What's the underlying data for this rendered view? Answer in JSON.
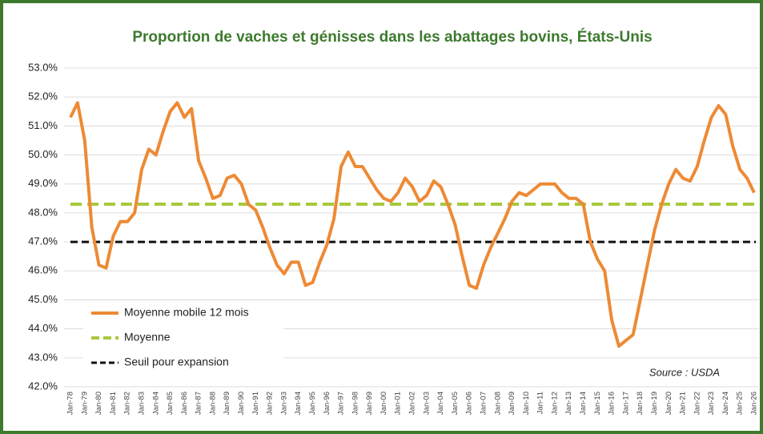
{
  "chart_data": {
    "type": "line",
    "title": "Proportion de vaches et génisses dans les abattages bovins, États-Unis",
    "source": "Source : USDA",
    "categories": [
      "Jan-78",
      null,
      "Jan-79",
      null,
      "Jan-80",
      null,
      "Jan-81",
      null,
      "Jan-82",
      null,
      "Jan-83",
      null,
      "Jan-84",
      null,
      "Jan-85",
      null,
      "Jan-86",
      null,
      "Jan-87",
      null,
      "Jan-88",
      null,
      "Jan-89",
      null,
      "Jan-90",
      null,
      "Jan-91",
      null,
      "Jan-92",
      null,
      "Jan-93",
      null,
      "Jan-94",
      null,
      "Jan-95",
      null,
      "Jan-96",
      null,
      "Jan-97",
      null,
      "Jan-98",
      null,
      "Jan-99",
      null,
      "Jan-00",
      null,
      "Jan-01",
      null,
      "Jan-02",
      null,
      "Jan-03",
      null,
      "Jan-04",
      null,
      "Jan-05",
      null,
      "Jan-06",
      null,
      "Jan-07",
      null,
      "Jan-08",
      null,
      "Jan-09",
      null,
      "Jan-10",
      null,
      "Jan-11",
      null,
      "Jan-12",
      null,
      "Jan-13",
      null,
      "Jan-14",
      null,
      "Jan-15",
      null,
      "Jan-16",
      null,
      "Jan-17",
      null,
      "Jan-18",
      null,
      "Jan-19",
      null,
      "Jan-20",
      null,
      "Jan-21",
      null,
      "Jan-22",
      null,
      "Jan-23",
      null,
      "Jan-24",
      null,
      "Jan-25",
      null,
      "Jan-26"
    ],
    "series": [
      {
        "name": "Moyenne mobile 12 mois",
        "color": "#ed8a35",
        "values": [
          51.3,
          51.8,
          50.5,
          47.5,
          46.2,
          46.1,
          47.2,
          47.7,
          47.7,
          48.0,
          49.5,
          50.2,
          50.0,
          50.8,
          51.5,
          51.8,
          51.3,
          51.6,
          49.8,
          49.2,
          48.5,
          48.6,
          49.2,
          49.3,
          49.0,
          48.3,
          48.1,
          47.5,
          46.8,
          46.2,
          45.9,
          46.3,
          46.3,
          45.5,
          45.6,
          46.3,
          46.9,
          47.8,
          49.6,
          50.1,
          49.6,
          49.6,
          49.2,
          48.8,
          48.5,
          48.4,
          48.7,
          49.2,
          48.9,
          48.4,
          48.6,
          49.1,
          48.9,
          48.3,
          47.6,
          46.5,
          45.5,
          45.4,
          46.2,
          46.8,
          47.3,
          47.8,
          48.4,
          48.7,
          48.6,
          48.8,
          49.0,
          49.0,
          49.0,
          48.7,
          48.5,
          48.5,
          48.3,
          47.0,
          46.4,
          46.0,
          44.3,
          43.4,
          43.6,
          43.8,
          45.0,
          46.2,
          47.4,
          48.3,
          49.0,
          49.5,
          49.2,
          49.1,
          49.6,
          50.5,
          51.3,
          51.7,
          51.4,
          50.3,
          49.5,
          49.2,
          48.7
        ]
      }
    ],
    "reference_lines": [
      {
        "name": "Moyenne",
        "value": 48.3,
        "color": "#a8c83c"
      },
      {
        "name": "Seuil pour expansion",
        "value": 47.0,
        "color": "#111111"
      }
    ],
    "ylim": [
      42,
      53
    ],
    "yticks": [
      {
        "value": 42,
        "label": "42.0%"
      },
      {
        "value": 43,
        "label": "43.0%"
      },
      {
        "value": 44,
        "label": "44.0%"
      },
      {
        "value": 45,
        "label": "45.0%"
      },
      {
        "value": 46,
        "label": "46.0%"
      },
      {
        "value": 47,
        "label": "47.0%"
      },
      {
        "value": 48,
        "label": "48.0%"
      },
      {
        "value": 49,
        "label": "49.0%"
      },
      {
        "value": 50,
        "label": "50.0%"
      },
      {
        "value": 51,
        "label": "51.0%"
      },
      {
        "value": 52,
        "label": "52.0%"
      },
      {
        "value": 53,
        "label": "53.0%"
      }
    ],
    "grid": true
  }
}
